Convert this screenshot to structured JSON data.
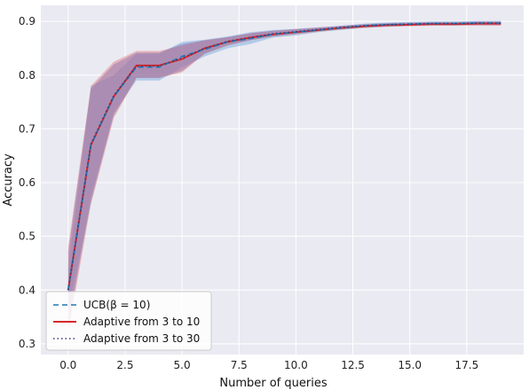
{
  "chart_data": {
    "type": "line",
    "title": "",
    "xlabel": "Number of queries",
    "ylabel": "Accuracy",
    "xlim": [
      -1.2,
      20.0
    ],
    "ylim": [
      0.28,
      0.93
    ],
    "xticks": [
      0.0,
      2.5,
      5.0,
      7.5,
      10.0,
      12.5,
      15.0,
      17.5
    ],
    "yticks": [
      0.3,
      0.4,
      0.5,
      0.6,
      0.7,
      0.8,
      0.9
    ],
    "xtick_labels": [
      "0.0",
      "2.5",
      "5.0",
      "7.5",
      "10.0",
      "12.5",
      "15.0",
      "17.5"
    ],
    "ytick_labels": [
      "0.3",
      "0.4",
      "0.5",
      "0.6",
      "0.7",
      "0.8",
      "0.9"
    ],
    "grid": true,
    "legend_position": "lower-left",
    "x": [
      0,
      1,
      2,
      3,
      4,
      5,
      6,
      7,
      8,
      9,
      10,
      11,
      12,
      13,
      14,
      15,
      16,
      17,
      18,
      19
    ],
    "series": [
      {
        "name": "UCB(β = 10)",
        "style": "dashed",
        "color": "#1f77b4",
        "band_color": "#6ea6db",
        "values": [
          0.4,
          0.67,
          0.76,
          0.815,
          0.815,
          0.835,
          0.848,
          0.862,
          0.868,
          0.876,
          0.88,
          0.884,
          0.888,
          0.892,
          0.894,
          0.895,
          0.896,
          0.896,
          0.897,
          0.897
        ],
        "lower": [
          0.36,
          0.56,
          0.73,
          0.79,
          0.79,
          0.815,
          0.835,
          0.85,
          0.858,
          0.87,
          0.874,
          0.88,
          0.884,
          0.888,
          0.89,
          0.892,
          0.893,
          0.893,
          0.894,
          0.894
        ],
        "upper": [
          0.44,
          0.78,
          0.8,
          0.84,
          0.84,
          0.862,
          0.866,
          0.872,
          0.88,
          0.884,
          0.886,
          0.889,
          0.892,
          0.896,
          0.898,
          0.899,
          0.9,
          0.9,
          0.901,
          0.901
        ]
      },
      {
        "name": "Adaptive from 3 to 10",
        "style": "solid",
        "color": "#d62728",
        "band_color": "#e07a7a",
        "values": [
          0.4,
          0.67,
          0.76,
          0.818,
          0.818,
          0.83,
          0.85,
          0.862,
          0.87,
          0.876,
          0.88,
          0.884,
          0.888,
          0.891,
          0.893,
          0.894,
          0.895,
          0.895,
          0.896,
          0.896
        ],
        "lower": [
          0.32,
          0.56,
          0.72,
          0.795,
          0.795,
          0.805,
          0.84,
          0.855,
          0.865,
          0.872,
          0.876,
          0.881,
          0.885,
          0.888,
          0.89,
          0.891,
          0.892,
          0.892,
          0.892,
          0.892
        ],
        "upper": [
          0.48,
          0.78,
          0.825,
          0.845,
          0.845,
          0.855,
          0.865,
          0.87,
          0.878,
          0.882,
          0.885,
          0.888,
          0.891,
          0.894,
          0.896,
          0.897,
          0.898,
          0.898,
          0.899,
          0.899
        ]
      },
      {
        "name": "Adaptive from 3 to 30",
        "style": "dotted",
        "color": "#3a3a7a",
        "band_color": "#8a6fb0",
        "values": [
          0.4,
          0.672,
          0.762,
          0.817,
          0.817,
          0.832,
          0.85,
          0.863,
          0.87,
          0.877,
          0.881,
          0.885,
          0.889,
          0.892,
          0.894,
          0.895,
          0.896,
          0.896,
          0.897,
          0.897
        ],
        "lower": [
          0.33,
          0.57,
          0.725,
          0.795,
          0.795,
          0.808,
          0.84,
          0.856,
          0.865,
          0.872,
          0.877,
          0.882,
          0.886,
          0.889,
          0.891,
          0.892,
          0.893,
          0.893,
          0.893,
          0.893
        ],
        "upper": [
          0.47,
          0.775,
          0.82,
          0.842,
          0.842,
          0.858,
          0.865,
          0.871,
          0.878,
          0.883,
          0.886,
          0.889,
          0.892,
          0.895,
          0.897,
          0.898,
          0.899,
          0.899,
          0.9,
          0.9
        ]
      }
    ]
  }
}
